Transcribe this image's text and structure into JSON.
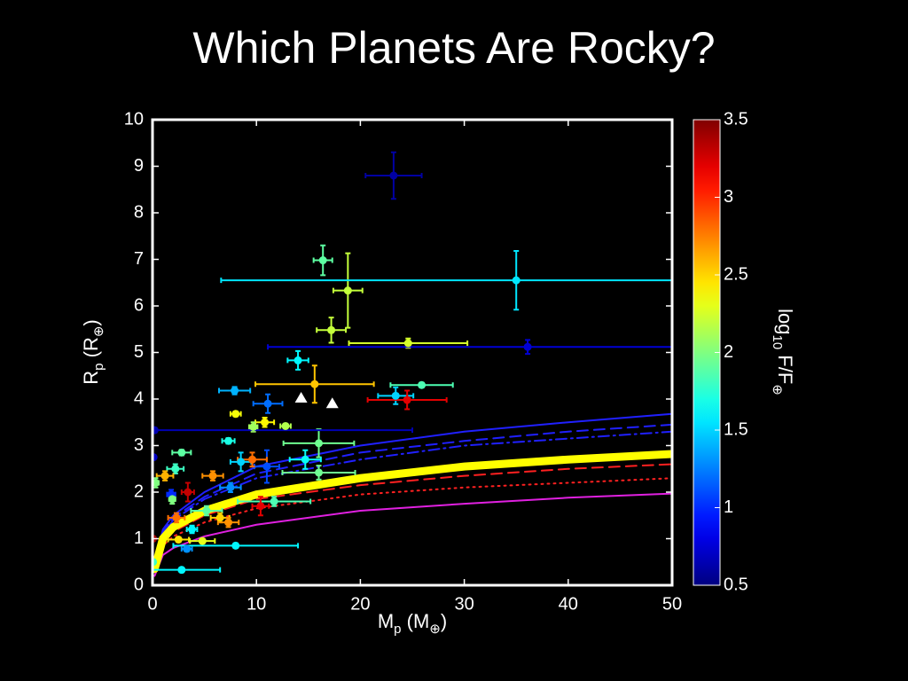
{
  "chart_data": {
    "type": "scatter",
    "title": "Which Planets Are Rocky?",
    "xlabel_parts": [
      "M",
      "p",
      " (M",
      "⊕",
      ")"
    ],
    "ylabel_parts": [
      "R",
      "p",
      " (R",
      "⊕",
      ")"
    ],
    "colorbar_label_parts": [
      "log",
      "10",
      " F/F",
      "⊕"
    ],
    "xlim": [
      0,
      50
    ],
    "xticks": [
      0,
      10,
      20,
      30,
      40,
      50
    ],
    "ylim": [
      0,
      10
    ],
    "yticks": [
      0,
      1,
      2,
      3,
      4,
      5,
      6,
      7,
      8,
      9,
      10
    ],
    "colormap": "jet",
    "clim": [
      0.5,
      3.5
    ],
    "cticks": [
      0.5,
      1,
      1.5,
      2,
      2.5,
      3,
      3.5
    ],
    "points": {
      "x": [
        23.2,
        16.4,
        18.8,
        35.0,
        17.2,
        24.6,
        36.1,
        14.0,
        15.6,
        23.4,
        24.5,
        25.9,
        7.9,
        11.1,
        8.0,
        10.8,
        9.7,
        12.8,
        7.3,
        16.0,
        0.2,
        14.7,
        16.0,
        11.0,
        8.5,
        9.6,
        2.8,
        2.2,
        1.2,
        0.3,
        1.8,
        3.4,
        5.8,
        7.5,
        11.7,
        10.4,
        5.2,
        2.3,
        6.5,
        3.8,
        7.3,
        0.05,
        2.5,
        4.8,
        8.0,
        3.3,
        2.8,
        0.05,
        1.9,
        0.1
      ],
      "y": [
        8.8,
        6.98,
        6.33,
        6.55,
        5.48,
        5.2,
        5.12,
        4.83,
        4.32,
        4.07,
        3.98,
        4.3,
        4.18,
        3.9,
        3.68,
        3.5,
        3.4,
        3.42,
        3.1,
        3.05,
        3.33,
        2.7,
        2.42,
        2.55,
        2.65,
        2.7,
        2.85,
        2.5,
        2.35,
        2.2,
        1.95,
        2.0,
        2.35,
        2.1,
        1.8,
        1.7,
        1.6,
        1.45,
        1.45,
        1.2,
        1.35,
        1.0,
        0.98,
        0.95,
        0.85,
        0.78,
        0.33,
        0.5,
        1.85,
        2.75
      ],
      "xerr": [
        2.7,
        0.9,
        1.4,
        28.4,
        1.4,
        5.7,
        25,
        1.0,
        5.7,
        1.7,
        3.8,
        3.0,
        1.5,
        1.4,
        0.5,
        0.9,
        0.4,
        0.5,
        0.6,
        3.4,
        24.8,
        1.5,
        3.5,
        1.2,
        1.0,
        1.4,
        0.9,
        0.8,
        0.8,
        0.3,
        0.4,
        0.6,
        1.0,
        1.0,
        3.5,
        0.8,
        1.5,
        0.8,
        0.9,
        0.5,
        1.0,
        0.2,
        1.0,
        1.2,
        6.0,
        0.5,
        3.7,
        0.2,
        0.3,
        0.2
      ],
      "yerr": [
        0.5,
        0.32,
        0.8,
        0.63,
        0.27,
        0.1,
        0.15,
        0.2,
        0.4,
        0.18,
        0.2,
        0.05,
        0.08,
        0.2,
        0.05,
        0.1,
        0.1,
        0.05,
        0.06,
        0.3,
        0.05,
        0.2,
        0.15,
        0.35,
        0.2,
        0.15,
        0.06,
        0.1,
        0.1,
        0.1,
        0.1,
        0.2,
        0.1,
        0.1,
        0.1,
        0.2,
        0.1,
        0.1,
        0.1,
        0.08,
        0.1,
        0.05,
        0.05,
        0.05,
        0.05,
        0.05,
        0.05,
        0.05,
        0.1,
        0.05
      ],
      "color_value": [
        0.6,
        1.9,
        2.2,
        1.55,
        2.2,
        2.25,
        0.75,
        1.6,
        2.55,
        1.5,
        3.2,
        1.85,
        1.4,
        1.2,
        2.35,
        2.4,
        2.1,
        2.15,
        1.7,
        1.95,
        0.65,
        1.65,
        1.95,
        1.1,
        1.5,
        2.8,
        1.9,
        1.8,
        2.6,
        2.0,
        1.0,
        3.3,
        2.7,
        1.3,
        1.85,
        3.2,
        1.9,
        2.8,
        2.5,
        1.6,
        2.7,
        3.4,
        2.45,
        2.3,
        1.6,
        1.3,
        1.6,
        1.8,
        2.0,
        0.7
      ]
    },
    "limits": {
      "x": [
        14.3,
        17.3
      ],
      "y": [
        4.02,
        3.9
      ],
      "color": "#ffffff"
    },
    "curves": [
      {
        "color": "#2020ff",
        "dash": "solid",
        "width": 2,
        "x": [
          0.2,
          1,
          2,
          5,
          10,
          20,
          30,
          40,
          50
        ],
        "y": [
          0.45,
          1.2,
          1.5,
          2.0,
          2.55,
          3.0,
          3.3,
          3.5,
          3.68
        ]
      },
      {
        "color": "#2020ff",
        "dash": "dashed",
        "width": 2,
        "x": [
          0.2,
          1,
          2,
          5,
          10,
          20,
          30,
          40,
          50
        ],
        "y": [
          0.4,
          1.15,
          1.45,
          1.9,
          2.4,
          2.85,
          3.1,
          3.3,
          3.45
        ]
      },
      {
        "color": "#2020ff",
        "dash": "dashdot",
        "width": 2,
        "x": [
          0.2,
          1,
          2,
          5,
          10,
          20,
          30,
          40,
          50
        ],
        "y": [
          0.4,
          1.1,
          1.4,
          1.85,
          2.3,
          2.7,
          3.0,
          3.15,
          3.3
        ]
      },
      {
        "color": "#ff2020",
        "dash": "dashed",
        "width": 2,
        "x": [
          0.2,
          1,
          2,
          5,
          10,
          20,
          30,
          40,
          50
        ],
        "y": [
          0.3,
          0.9,
          1.15,
          1.5,
          1.85,
          2.15,
          2.35,
          2.5,
          2.6
        ]
      },
      {
        "color": "#ff2020",
        "dash": "dotted",
        "width": 2,
        "x": [
          0.2,
          1,
          2,
          5,
          10,
          20,
          30,
          40,
          50
        ],
        "y": [
          0.28,
          0.85,
          1.05,
          1.35,
          1.65,
          1.95,
          2.1,
          2.2,
          2.3
        ]
      },
      {
        "color": "#e020e0",
        "dash": "solid",
        "width": 2,
        "x": [
          0.2,
          1,
          2,
          5,
          10,
          20,
          30,
          40,
          50
        ],
        "y": [
          0.2,
          0.65,
          0.8,
          1.05,
          1.3,
          1.6,
          1.75,
          1.88,
          1.97
        ]
      },
      {
        "color": "#ffff00",
        "dash": "solid",
        "width": 9,
        "x": [
          0.2,
          1,
          2,
          5,
          10,
          20,
          30,
          40,
          50
        ],
        "y": [
          0.35,
          1.0,
          1.25,
          1.6,
          1.95,
          2.3,
          2.55,
          2.7,
          2.82
        ]
      }
    ]
  }
}
